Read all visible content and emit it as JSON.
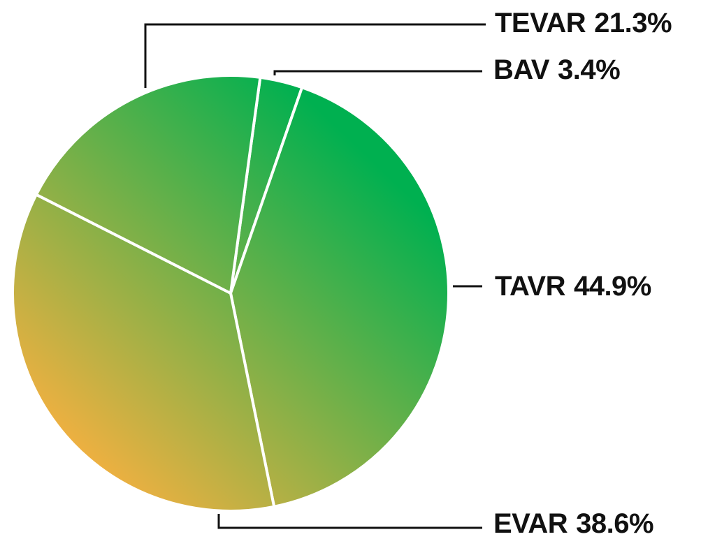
{
  "chart_data": {
    "type": "pie",
    "categories": [
      "TEVAR",
      "BAV",
      "TAVR",
      "EVAR"
    ],
    "values": [
      21.3,
      3.4,
      44.9,
      38.6
    ],
    "value_labels": [
      "21.3%",
      "3.4%",
      "44.9%",
      "38.6%"
    ],
    "gradient_colors": [
      "#00b050",
      "#fbb040"
    ]
  }
}
